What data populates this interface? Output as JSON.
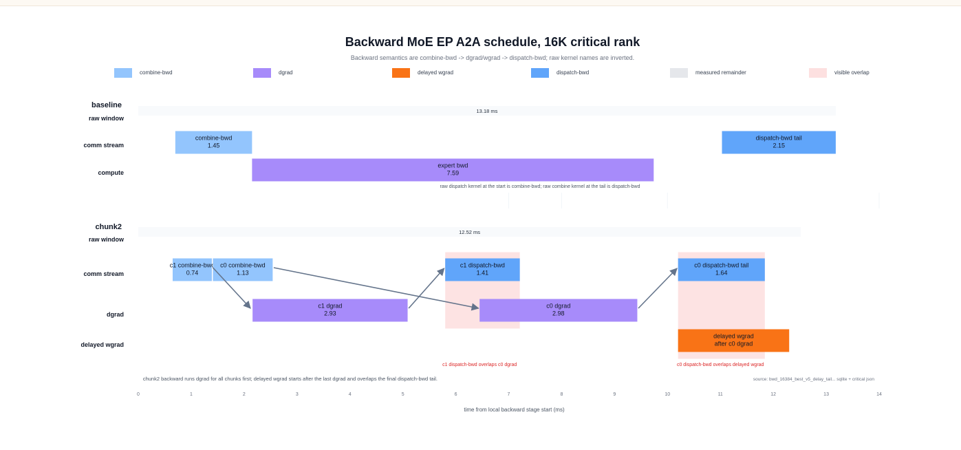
{
  "chart_data": {
    "type": "gantt",
    "title": "Backward MoE EP A2A schedule, 16K critical rank",
    "subtitle": "Backward semantics are combine-bwd -> dgrad/wgrad -> dispatch-bwd; raw kernel names are inverted.",
    "xlabel": "time from local backward stage start (ms)",
    "xlim": [
      0,
      14
    ],
    "xticks": [
      0,
      1,
      2,
      3,
      4,
      5,
      6,
      7,
      8,
      9,
      10,
      11,
      12,
      13,
      14
    ],
    "grid": false,
    "legend_position": "top",
    "legend": [
      {
        "label": "combine-bwd",
        "color": "#93c5fd"
      },
      {
        "label": "dgrad",
        "color": "#a78bfa"
      },
      {
        "label": "delayed wgrad",
        "color": "#f97316"
      },
      {
        "label": "dispatch-bwd",
        "color": "#60a5fa"
      },
      {
        "label": "measured remainder",
        "color": "#e5e7eb"
      },
      {
        "label": "visible overlap",
        "color": "#fde0e0"
      }
    ],
    "sections": [
      {
        "title": "baseline",
        "lanes": [
          "raw window",
          "comm stream",
          "compute"
        ],
        "window": {
          "start": 0,
          "end": 13.18,
          "label": "13.18 ms"
        },
        "overlaps": [],
        "bars": [
          {
            "lane": 1,
            "start": 0.7,
            "end": 2.15,
            "label": "combine-bwd",
            "value": "1.45",
            "color": "#93c5fd"
          },
          {
            "lane": 1,
            "start": 11.03,
            "end": 13.18,
            "label": "dispatch-bwd tail",
            "value": "2.15",
            "color": "#60a5fa"
          },
          {
            "lane": 2,
            "start": 2.15,
            "end": 9.74,
            "label": "expert bwd",
            "value": "7.59",
            "color": "#a78bfa"
          }
        ],
        "arrows": [],
        "notes": [
          {
            "text": "raw dispatch kernel at the start is combine-bwd; raw combine kernel at the tail is dispatch-bwd",
            "x": 5.7
          }
        ],
        "overlap_notes": []
      },
      {
        "title": "chunk2",
        "lanes": [
          "raw window",
          "comm stream",
          "dgrad",
          "delayed wgrad"
        ],
        "window": {
          "start": 0,
          "end": 12.52,
          "label": "12.52 ms"
        },
        "overlaps": [
          {
            "start": 5.8,
            "end": 7.21,
            "top_lane": 1,
            "bottom_lane": 2
          },
          {
            "start": 10.2,
            "end": 11.84,
            "top_lane": 1,
            "bottom_lane": 3
          }
        ],
        "bars": [
          {
            "lane": 1,
            "start": 0.65,
            "end": 1.39,
            "label": "c1 combine-bwd",
            "value": "0.74",
            "color": "#93c5fd"
          },
          {
            "lane": 1,
            "start": 1.41,
            "end": 2.54,
            "label": "c0 combine-bwd",
            "value": "1.13",
            "color": "#93c5fd"
          },
          {
            "lane": 1,
            "start": 5.8,
            "end": 7.21,
            "label": "c1 dispatch-bwd",
            "value": "1.41",
            "color": "#60a5fa"
          },
          {
            "lane": 1,
            "start": 10.2,
            "end": 11.84,
            "label": "c0 dispatch-bwd tail",
            "value": "1.64",
            "color": "#60a5fa"
          },
          {
            "lane": 2,
            "start": 2.16,
            "end": 5.09,
            "label": "c1 dgrad",
            "value": "2.93",
            "color": "#a78bfa"
          },
          {
            "lane": 2,
            "start": 6.45,
            "end": 9.43,
            "label": "c0 dgrad",
            "value": "2.98",
            "color": "#a78bfa"
          },
          {
            "lane": 3,
            "start": 10.2,
            "end": 12.3,
            "label": "delayed wgrad",
            "value": "after c0 dgrad",
            "color": "#f97316"
          }
        ],
        "arrows": [
          {
            "from": [
              1.41,
              1
            ],
            "to": [
              2.12,
              2
            ]
          },
          {
            "from": [
              2.56,
              1
            ],
            "to": [
              6.43,
              2
            ]
          },
          {
            "from": [
              5.11,
              2
            ],
            "to": [
              5.78,
              1
            ]
          },
          {
            "from": [
              9.45,
              2
            ],
            "to": [
              10.18,
              1
            ]
          }
        ],
        "notes": [
          {
            "text": "chunk2 backward runs dgrad for all chunks first; delayed wgrad starts after the last dgrad and overlaps the final dispatch-bwd tail.",
            "x": 0.05
          }
        ],
        "overlap_notes": [
          {
            "text": "c1 dispatch-bwd overlaps c0 dgrad",
            "x": 6.45
          },
          {
            "text": "c0 dispatch-bwd overlaps delayed wgrad",
            "x": 11.0
          }
        ]
      }
    ],
    "source": "source: bwd_16384_best_v5_delay_tail... sqlite + critical json"
  }
}
